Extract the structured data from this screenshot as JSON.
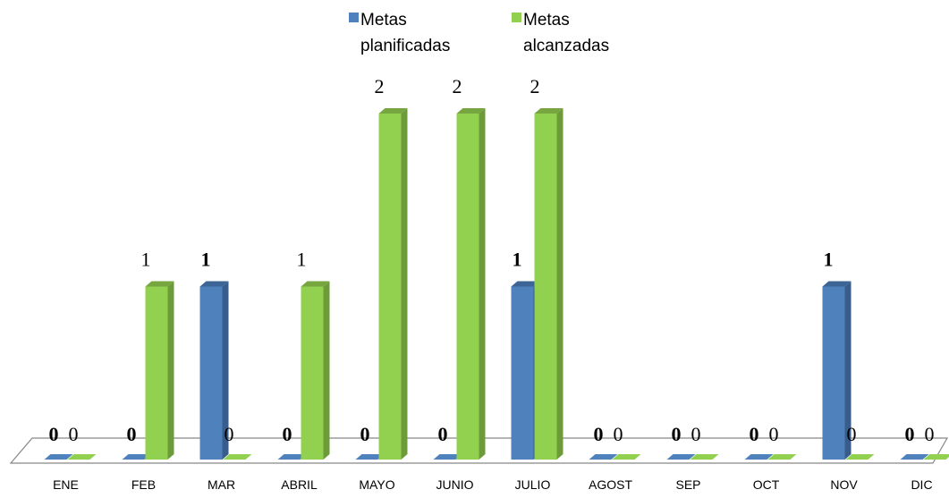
{
  "chart_data": {
    "type": "bar",
    "categories": [
      "ENE",
      "FEB",
      "MAR",
      "ABRIL",
      "MAYO",
      "JUNIO",
      "JULIO",
      "AGOST",
      "SEP",
      "OCT",
      "NOV",
      "DIC"
    ],
    "series": [
      {
        "name": "Metas planificadas",
        "name_lines": [
          "Metas",
          "planificadas"
        ],
        "color": "#4F81BD",
        "side_color": "#385D8A",
        "top_color": "#3C6596",
        "label_weight": "bold",
        "values": [
          0,
          0,
          1,
          0,
          0,
          0,
          1,
          0,
          0,
          0,
          1,
          0
        ]
      },
      {
        "name": "Metas alcanzadas",
        "name_lines": [
          "Metas",
          "alcanzadas"
        ],
        "color": "#92D050",
        "side_color": "#6E9B3A",
        "top_color": "#77A640",
        "label_weight": "normal",
        "values": [
          0,
          1,
          0,
          1,
          2,
          2,
          2,
          0,
          0,
          0,
          0,
          0
        ]
      }
    ],
    "ylim": [
      0,
      2
    ],
    "three_d": true,
    "legend_position": "top",
    "grid": false
  }
}
